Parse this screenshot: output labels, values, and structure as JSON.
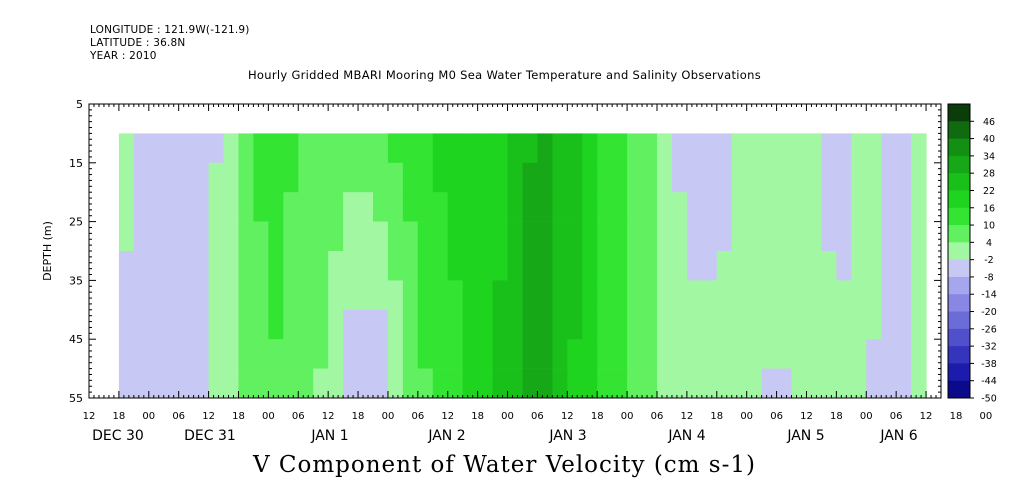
{
  "header": {
    "longitude": "LONGITUDE : 121.9W(-121.9)",
    "latitude": "LATITUDE : 36.8N",
    "year": "YEAR : 2010"
  },
  "title": "Hourly Gridded MBARI Mooring M0 Sea Water Temperature and Salinity Observations",
  "footer": "V Component of Water Velocity (cm s-1)",
  "chart_data": {
    "type": "heatmap",
    "title": "Hourly Gridded MBARI Mooring M0 Sea Water Temperature and Salinity Observations",
    "xlabel": "",
    "ylabel": "DEPTH (m)",
    "colorbar_label": "V Component of Water Velocity (cm s-1)",
    "ylim": [
      55,
      5
    ],
    "y_ticks": [
      5,
      15,
      25,
      35,
      45,
      55
    ],
    "hour_tick_labels": [
      "12",
      "18",
      "00",
      "06",
      "12",
      "18",
      "00",
      "06",
      "12",
      "18",
      "00",
      "06",
      "12",
      "18",
      "00",
      "06",
      "12",
      "18",
      "00",
      "06",
      "12",
      "18",
      "00",
      "06",
      "12",
      "18",
      "00",
      "06",
      "12",
      "18",
      "00",
      "06",
      "12",
      "18",
      "00",
      "06",
      "12"
    ],
    "day_labels": [
      "DEC 30",
      "DEC 31",
      "JAN  1",
      "JAN  2",
      "JAN  3",
      "JAN  4",
      "JAN  5",
      "JAN  6"
    ],
    "colorbar_levels": [
      48,
      46,
      40,
      34,
      28,
      22,
      16,
      10,
      4,
      -2,
      -8,
      -14,
      -20,
      -26,
      -32,
      -38,
      -44,
      -50
    ],
    "colorbar_labels": [
      "46",
      "40",
      "34",
      "28",
      "22",
      "16",
      "10",
      "4",
      "-2",
      "-8",
      "-14",
      "-20",
      "-26",
      "-32",
      "-38",
      "-44",
      "-50"
    ],
    "colorbar_colors": [
      "#0b3d0b",
      "#106b10",
      "#138f13",
      "#16a816",
      "#19c019",
      "#1ed41e",
      "#33e433",
      "#60f060",
      "#a2f7a2",
      "#c8c8f4",
      "#a6a6ee",
      "#8888e4",
      "#6c6cd8",
      "#5050cc",
      "#3434bc",
      "#1c1cac",
      "#0a0a8a"
    ],
    "depth_rows": [
      10,
      15,
      20,
      25,
      30,
      35,
      40,
      45,
      50,
      55
    ],
    "time_hours_start": 6,
    "time_hours_end": 168,
    "time_step_hours": 3,
    "v_profiles": {
      "time_hours": [
        6,
        12,
        18,
        24,
        30,
        36,
        42,
        48,
        54,
        60,
        66,
        72,
        78,
        84,
        90,
        96,
        102,
        108,
        114,
        120,
        126,
        132,
        138,
        144,
        150,
        156,
        162,
        168
      ],
      "surface": [
        2,
        -4,
        -6,
        -5,
        6,
        12,
        10,
        8,
        6,
        10,
        14,
        18,
        16,
        20,
        30,
        26,
        16,
        10,
        6,
        -6,
        -6,
        2,
        3,
        2,
        -8,
        4,
        -6,
        2
      ],
      "bottom": [
        -4,
        -6,
        -8,
        -2,
        6,
        10,
        8,
        2,
        -8,
        -6,
        8,
        14,
        18,
        26,
        34,
        24,
        14,
        10,
        2,
        1,
        1,
        1,
        -4,
        1,
        2,
        -2,
        -6,
        0
      ]
    }
  }
}
